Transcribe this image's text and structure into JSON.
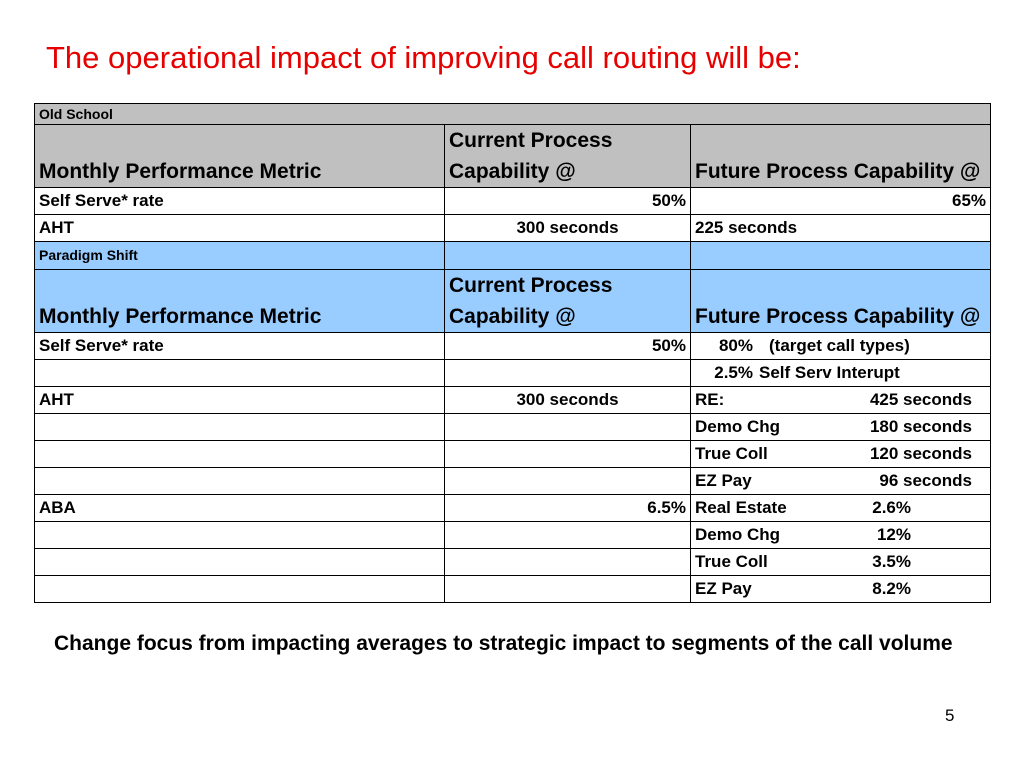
{
  "title": "The operational impact of improving call routing will be:",
  "old_school": {
    "section_label": "Old School",
    "headers": [
      "Monthly Performance Metric",
      "Current Process Capability @",
      "Future Process Capability @"
    ],
    "rows": [
      {
        "metric": "Self Serve* rate",
        "current": "50%",
        "future": "65%"
      },
      {
        "metric": "AHT",
        "current": "300 seconds",
        "future": "225 seconds"
      }
    ]
  },
  "paradigm_shift": {
    "section_label": "Paradigm Shift",
    "headers": [
      "Monthly Performance Metric",
      "Current Process Capability @",
      "Future Process Capability @"
    ],
    "rows": [
      {
        "metric": "Self Serve* rate",
        "current": "50%",
        "future_a": "80%",
        "future_b": "(target call types)"
      },
      {
        "metric": "",
        "current": "",
        "future_a": "2.5%",
        "future_b": "Self Serv Interupt"
      },
      {
        "metric": "AHT",
        "current": "300 seconds",
        "future_a": "RE:",
        "future_b": "425 seconds"
      },
      {
        "metric": "",
        "current": "",
        "future_a": "Demo Chg",
        "future_b": "180 seconds"
      },
      {
        "metric": "",
        "current": "",
        "future_a": "True Coll",
        "future_b": "120 seconds"
      },
      {
        "metric": "",
        "current": "",
        "future_a": "EZ Pay",
        "future_b": "96 seconds"
      },
      {
        "metric": "ABA",
        "current": "6.5%",
        "future_a": "Real Estate",
        "future_b": "2.6%"
      },
      {
        "metric": "",
        "current": "",
        "future_a": "Demo Chg",
        "future_b": "12%"
      },
      {
        "metric": "",
        "current": "",
        "future_a": "True Coll",
        "future_b": "3.5%"
      },
      {
        "metric": "",
        "current": "",
        "future_a": "EZ Pay",
        "future_b": "8.2%"
      }
    ]
  },
  "footer_text": "Change focus from impacting averages to strategic impact to segments of the call volume",
  "page_number": "5",
  "colors": {
    "title": "#e60000",
    "grey_header": "#c0c0c0",
    "blue_header": "#99ccff"
  }
}
